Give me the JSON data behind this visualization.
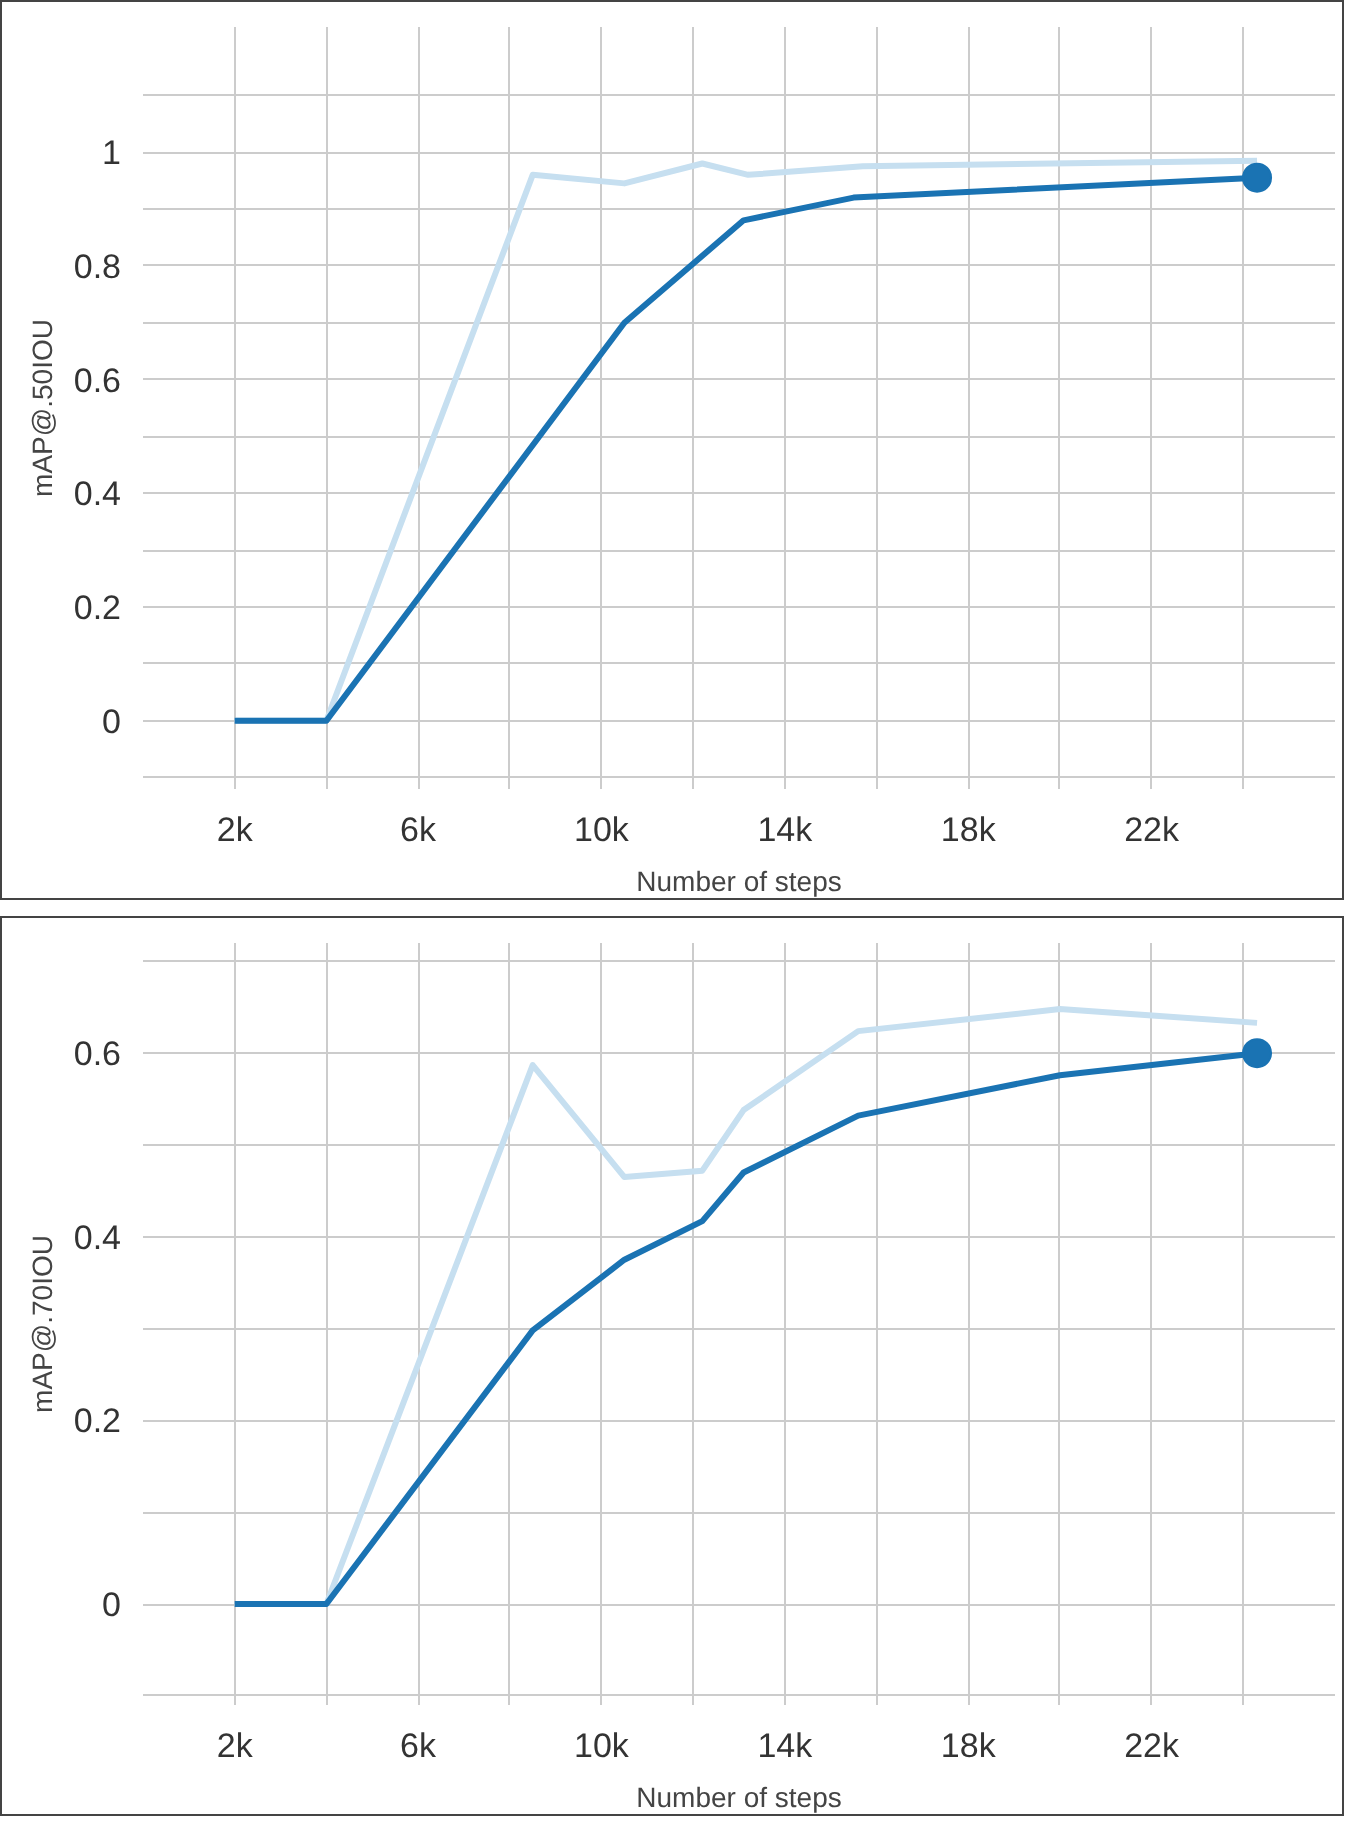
{
  "chart_data": [
    {
      "type": "line",
      "xlabel": "Number of steps",
      "ylabel": "mAP@.50IOU",
      "xlim": [
        0,
        26000
      ],
      "ylim": [
        -0.12,
        1.22
      ],
      "xticks": [
        {
          "value": 2000,
          "label": "2k"
        },
        {
          "value": 4000,
          "label": null
        },
        {
          "value": 6000,
          "label": "6k"
        },
        {
          "value": 8000,
          "label": null
        },
        {
          "value": 10000,
          "label": "10k"
        },
        {
          "value": 12000,
          "label": null
        },
        {
          "value": 14000,
          "label": "14k"
        },
        {
          "value": 16000,
          "label": null
        },
        {
          "value": 18000,
          "label": "18k"
        },
        {
          "value": 20000,
          "label": null
        },
        {
          "value": 22000,
          "label": "22k"
        },
        {
          "value": 24000,
          "label": null
        }
      ],
      "yticks": [
        {
          "value": -0.1,
          "label": null
        },
        0,
        {
          "value": 0.1,
          "label": null
        },
        0.2,
        {
          "value": 0.3,
          "label": null
        },
        0.4,
        {
          "value": 0.5,
          "label": null
        },
        0.6,
        {
          "value": 0.7,
          "label": null
        },
        0.8,
        {
          "value": 0.9,
          "label": null
        },
        1,
        {
          "value": 1.1,
          "label": null
        }
      ],
      "grid": true,
      "series": [
        {
          "color": "#c6dff0",
          "x": [
            2000,
            4000,
            8500,
            10500,
            12200,
            13200,
            15700,
            24300
          ],
          "values": [
            0,
            0,
            0.96,
            0.945,
            0.98,
            0.96,
            0.975,
            0.985
          ]
        },
        {
          "color": "#1a73b3",
          "x": [
            2000,
            4000,
            10500,
            13100,
            15500,
            24300
          ],
          "values": [
            0,
            0,
            0.7,
            0.88,
            0.92,
            0.955
          ]
        },
        {
          "type": "scatter",
          "marker": "circle",
          "color": "#1a73b3",
          "x": [
            24300
          ],
          "values": [
            0.955
          ]
        }
      ]
    },
    {
      "type": "line",
      "xlabel": "Number of steps",
      "ylabel": "mAP@.70IOU",
      "xlim": [
        0,
        26000
      ],
      "ylim": [
        -0.11,
        0.72
      ],
      "xticks": [
        {
          "value": 2000,
          "label": "2k"
        },
        {
          "value": 4000,
          "label": null
        },
        {
          "value": 6000,
          "label": "6k"
        },
        {
          "value": 8000,
          "label": null
        },
        {
          "value": 10000,
          "label": "10k"
        },
        {
          "value": 12000,
          "label": null
        },
        {
          "value": 14000,
          "label": "14k"
        },
        {
          "value": 16000,
          "label": null
        },
        {
          "value": 18000,
          "label": "18k"
        },
        {
          "value": 20000,
          "label": null
        },
        {
          "value": 22000,
          "label": "22k"
        },
        {
          "value": 24000,
          "label": null
        }
      ],
      "yticks": [
        {
          "value": -0.1,
          "label": null
        },
        0,
        {
          "value": 0.1,
          "label": null
        },
        0.2,
        {
          "value": 0.3,
          "label": null
        },
        0.4,
        {
          "value": 0.5,
          "label": null
        },
        0.6,
        {
          "value": 0.7,
          "label": null
        }
      ],
      "grid": true,
      "series": [
        {
          "color": "#c6dff0",
          "x": [
            2000,
            4000,
            8500,
            10500,
            12200,
            13100,
            15600,
            20000,
            24300
          ],
          "values": [
            0,
            0,
            0.587,
            0.465,
            0.472,
            0.538,
            0.624,
            0.648,
            0.633
          ]
        },
        {
          "color": "#1a73b3",
          "x": [
            2000,
            4000,
            8500,
            10500,
            12200,
            13100,
            15600,
            20000,
            24300
          ],
          "values": [
            0,
            0,
            0.298,
            0.375,
            0.417,
            0.47,
            0.532,
            0.576,
            0.6
          ]
        },
        {
          "type": "scatter",
          "marker": "circle",
          "color": "#1a73b3",
          "x": [
            24300
          ],
          "values": [
            0.6
          ]
        }
      ]
    }
  ]
}
